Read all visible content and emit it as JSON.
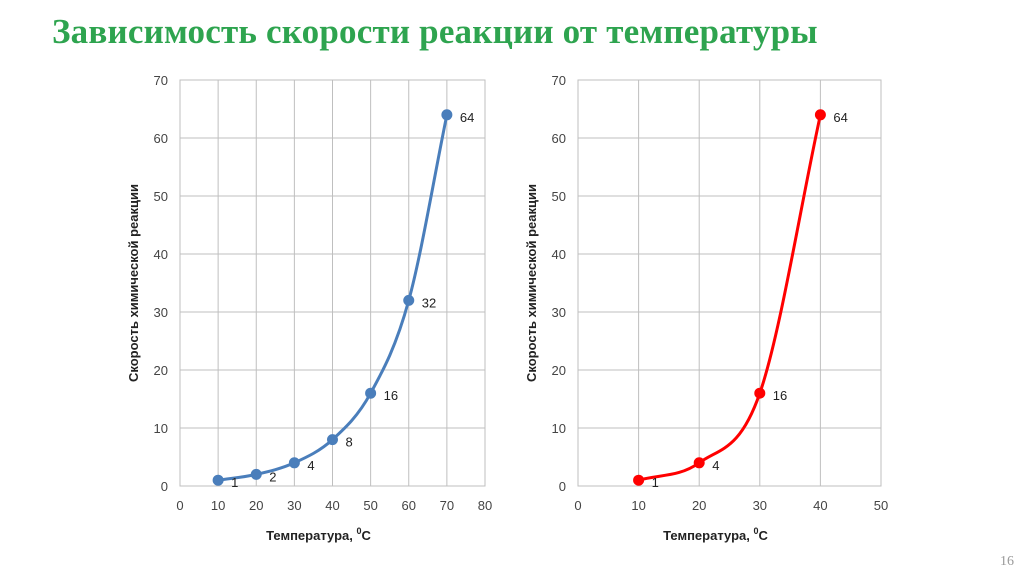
{
  "slide": {
    "title": "Зависимость скорости реакции от температуры",
    "page_number": "16"
  },
  "chart_data": [
    {
      "type": "line",
      "smooth": true,
      "color": "#4a7ebb",
      "x": [
        10,
        20,
        30,
        40,
        50,
        60,
        70
      ],
      "y": [
        1,
        2,
        4,
        8,
        16,
        32,
        64
      ],
      "labels": [
        "1",
        "2",
        "4",
        "8",
        "16",
        "32",
        "64"
      ],
      "xlim": [
        0,
        80
      ],
      "ylim": [
        0,
        70
      ],
      "xticks": [
        0,
        10,
        20,
        30,
        40,
        50,
        60,
        70,
        80
      ],
      "yticks": [
        0,
        10,
        20,
        30,
        40,
        50,
        60,
        70
      ],
      "xlabel": "Температура, ",
      "xlabel_sup": "0",
      "xlabel_tail": "С",
      "ylabel": "Скорость химической реакции",
      "grid": true
    },
    {
      "type": "line",
      "smooth": true,
      "color": "#ff0000",
      "x": [
        10,
        20,
        30,
        40
      ],
      "y": [
        1,
        4,
        16,
        64
      ],
      "labels": [
        "1",
        "4",
        "16",
        "64"
      ],
      "xlim": [
        0,
        50
      ],
      "ylim": [
        0,
        70
      ],
      "xticks": [
        0,
        10,
        20,
        30,
        40,
        50
      ],
      "yticks": [
        0,
        10,
        20,
        30,
        40,
        50,
        60,
        70
      ],
      "xlabel": "Температура, ",
      "xlabel_sup": "0",
      "xlabel_tail": "С",
      "ylabel": "Скорость химической реакции",
      "grid": true
    }
  ]
}
